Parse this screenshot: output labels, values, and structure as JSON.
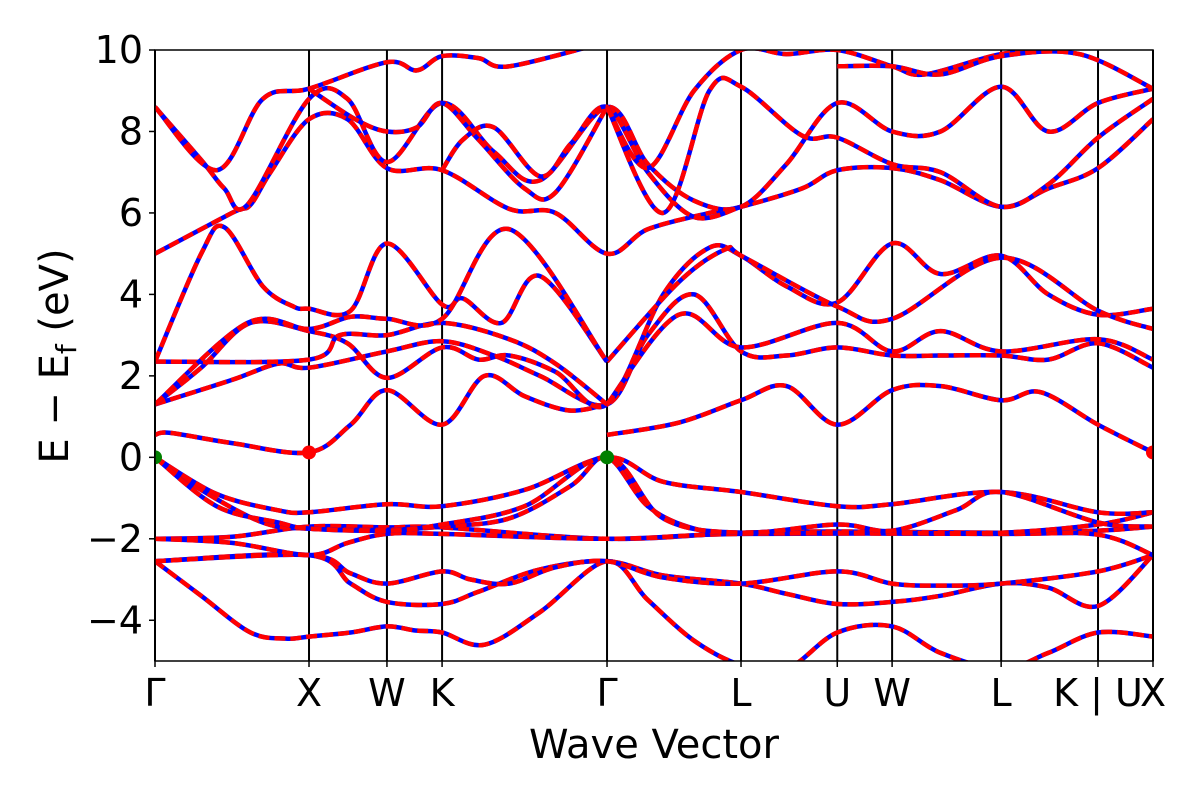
{
  "chart_data": {
    "type": "line",
    "title": "",
    "xlabel": "Wave Vector",
    "ylabel_main": "E − E",
    "ylabel_sub": "f",
    "ylabel_unit": " (eV)",
    "ylim": [
      -5,
      10
    ],
    "yticks": [
      -4,
      -2,
      0,
      2,
      4,
      6,
      8,
      10
    ],
    "ytick_labels": [
      "−4",
      "−2",
      "0",
      "2",
      "4",
      "6",
      "8",
      "10"
    ],
    "xlim": [
      0,
      6.48
    ],
    "kpoints": [
      {
        "label": "Γ",
        "k": 0
      },
      {
        "label": "X",
        "k": 1.0
      },
      {
        "label": "W",
        "k": 1.506
      },
      {
        "label": "K",
        "k": 1.864
      },
      {
        "label": "Γ",
        "k": 2.935
      },
      {
        "label": "L",
        "k": 3.805
      },
      {
        "label": "U",
        "k": 4.43
      },
      {
        "label": "W",
        "k": 4.786
      },
      {
        "label": "L",
        "k": 5.494
      },
      {
        "label": "K | U",
        "k": 6.123
      },
      {
        "label": "X",
        "k": 6.48
      }
    ],
    "colors": {
      "line_under": "#0000ff",
      "line_dash": "#ff0000",
      "vbm": "#008000",
      "cbm": "#ff0000"
    },
    "markers": [
      {
        "type": "vbm",
        "k": 0,
        "E": 0
      },
      {
        "type": "vbm",
        "k": 2.935,
        "E": 0
      },
      {
        "type": "cbm",
        "k": 1.0,
        "E": 0.12
      },
      {
        "type": "cbm",
        "k": 6.48,
        "E": 0.12
      }
    ],
    "bands": [
      [
        [
          0,
          -2.55
        ],
        [
          0.3,
          -3.4
        ],
        [
          0.62,
          -4.3
        ],
        [
          0.85,
          -4.45
        ],
        [
          1.0,
          -4.4
        ],
        [
          1.27,
          -4.3
        ],
        [
          1.506,
          -4.15
        ],
        [
          1.69,
          -4.25
        ],
        [
          1.864,
          -4.3
        ],
        [
          2.14,
          -4.6
        ],
        [
          2.5,
          -3.8
        ],
        [
          2.935,
          -2.55
        ],
        [
          3.2,
          -3.5
        ],
        [
          3.5,
          -4.5
        ],
        [
          3.805,
          -5.1
        ],
        [
          4.1,
          -5.2
        ],
        [
          4.43,
          -4.3
        ],
        [
          4.786,
          -4.15
        ],
        [
          5.1,
          -4.8
        ],
        [
          5.494,
          -5.2
        ],
        [
          5.8,
          -4.8
        ],
        [
          6.123,
          -4.3
        ],
        [
          6.48,
          -4.4
        ]
      ],
      [
        [
          0,
          -2.55
        ],
        [
          1.0,
          -2.4
        ],
        [
          1.27,
          -3.1
        ],
        [
          1.506,
          -3.55
        ],
        [
          1.864,
          -3.6
        ],
        [
          2.1,
          -3.3
        ],
        [
          2.5,
          -2.75
        ],
        [
          2.935,
          -2.55
        ],
        [
          3.3,
          -2.9
        ],
        [
          3.805,
          -3.1
        ],
        [
          4.1,
          -3.35
        ],
        [
          4.43,
          -3.6
        ],
        [
          4.786,
          -3.55
        ],
        [
          5.1,
          -3.4
        ],
        [
          5.494,
          -3.1
        ],
        [
          5.8,
          -3.2
        ],
        [
          6.123,
          -3.65
        ],
        [
          6.48,
          -2.4
        ]
      ],
      [
        [
          0,
          -2.55
        ],
        [
          1.0,
          -2.4
        ],
        [
          1.27,
          -2.85
        ],
        [
          1.506,
          -3.1
        ],
        [
          1.864,
          -2.8
        ],
        [
          2.05,
          -3.0
        ],
        [
          2.3,
          -3.1
        ],
        [
          2.6,
          -2.7
        ],
        [
          2.935,
          -2.55
        ],
        [
          3.3,
          -2.95
        ],
        [
          3.805,
          -3.1
        ],
        [
          4.43,
          -2.8
        ],
        [
          4.786,
          -3.1
        ],
        [
          5.1,
          -3.15
        ],
        [
          5.494,
          -3.1
        ],
        [
          6.123,
          -2.8
        ],
        [
          6.48,
          -2.4
        ]
      ],
      [
        [
          0,
          -2.0
        ],
        [
          0.5,
          -1.95
        ],
        [
          1.0,
          -1.7
        ],
        [
          1.506,
          -1.72
        ],
        [
          1.864,
          -1.72
        ],
        [
          2.935,
          -2.0
        ],
        [
          3.805,
          -1.85
        ],
        [
          4.43,
          -1.82
        ],
        [
          5.494,
          -1.85
        ],
        [
          6.123,
          -1.8
        ],
        [
          6.48,
          -1.7
        ]
      ],
      [
        [
          0,
          -2.0
        ],
        [
          0.5,
          -2.1
        ],
        [
          1.0,
          -2.4
        ],
        [
          1.25,
          -2.1
        ],
        [
          1.506,
          -1.88
        ],
        [
          1.864,
          -1.88
        ],
        [
          2.935,
          -2.0
        ],
        [
          3.805,
          -1.88
        ],
        [
          5.494,
          -1.88
        ],
        [
          6.123,
          -1.9
        ],
        [
          6.48,
          -2.4
        ]
      ],
      [
        [
          0,
          0
        ],
        [
          0.3,
          -0.8
        ],
        [
          0.7,
          -1.6
        ],
        [
          1.0,
          -1.75
        ],
        [
          1.506,
          -1.78
        ],
        [
          1.864,
          -1.7
        ],
        [
          2.3,
          -1.5
        ],
        [
          2.7,
          -0.7
        ],
        [
          2.935,
          0
        ],
        [
          3.2,
          -1.2
        ],
        [
          3.5,
          -1.75
        ],
        [
          3.805,
          -1.85
        ],
        [
          4.43,
          -1.85
        ],
        [
          4.786,
          -1.85
        ],
        [
          5.494,
          -1.85
        ],
        [
          6.123,
          -1.65
        ],
        [
          6.48,
          -1.35
        ]
      ],
      [
        [
          0,
          0
        ],
        [
          0.4,
          -0.9
        ],
        [
          0.8,
          -1.3
        ],
        [
          1.0,
          -1.35
        ],
        [
          1.506,
          -1.15
        ],
        [
          1.864,
          -1.2
        ],
        [
          2.4,
          -0.8
        ],
        [
          2.935,
          0
        ],
        [
          3.3,
          -0.6
        ],
        [
          3.805,
          -0.85
        ],
        [
          4.43,
          -1.2
        ],
        [
          4.786,
          -1.15
        ],
        [
          5.494,
          -0.85
        ],
        [
          6.123,
          -1.35
        ],
        [
          6.48,
          -1.35
        ]
      ],
      [
        [
          0,
          0
        ],
        [
          0.4,
          -1.2
        ],
        [
          0.8,
          -1.6
        ],
        [
          1.0,
          -1.75
        ],
        [
          1.506,
          -1.8
        ],
        [
          1.864,
          -1.65
        ],
        [
          2.4,
          -1.2
        ],
        [
          2.935,
          0
        ],
        [
          3.3,
          -1.5
        ],
        [
          3.805,
          -1.85
        ],
        [
          4.43,
          -1.65
        ],
        [
          4.786,
          -1.8
        ],
        [
          5.2,
          -1.3
        ],
        [
          5.494,
          -0.85
        ],
        [
          6.123,
          -1.6
        ],
        [
          6.48,
          -1.7
        ]
      ],
      [
        [
          0,
          0.55
        ],
        [
          0.1,
          0.6
        ],
        [
          0.5,
          0.35
        ],
        [
          1.0,
          0.12
        ],
        [
          1.27,
          0.8
        ],
        [
          1.506,
          1.65
        ],
        [
          1.864,
          0.8
        ],
        [
          2.14,
          2.0
        ],
        [
          2.4,
          1.5
        ],
        [
          2.69,
          1.15
        ],
        [
          2.935,
          1.3
        ]
      ],
      [
        [
          2.935,
          0.55
        ],
        [
          3.4,
          0.85
        ],
        [
          3.805,
          1.4
        ],
        [
          4.1,
          1.75
        ],
        [
          4.43,
          0.8
        ],
        [
          4.786,
          1.65
        ],
        [
          5.1,
          1.75
        ],
        [
          5.494,
          1.4
        ],
        [
          5.75,
          1.6
        ],
        [
          6.123,
          0.8
        ],
        [
          6.48,
          0.12
        ]
      ],
      [
        [
          0,
          1.3
        ],
        [
          0.5,
          1.9
        ],
        [
          0.8,
          2.3
        ],
        [
          1.0,
          2.2
        ],
        [
          1.506,
          2.6
        ],
        [
          1.864,
          2.85
        ],
        [
          2.2,
          2.5
        ],
        [
          2.5,
          2.0
        ],
        [
          2.935,
          1.3
        ],
        [
          3.2,
          3.0
        ],
        [
          3.5,
          4.0
        ],
        [
          3.805,
          2.6
        ],
        [
          4.1,
          2.5
        ],
        [
          4.43,
          2.7
        ],
        [
          4.786,
          2.5
        ],
        [
          5.1,
          2.5
        ],
        [
          5.494,
          2.5
        ],
        [
          5.8,
          2.4
        ],
        [
          6.123,
          2.8
        ],
        [
          6.48,
          2.2
        ]
      ],
      [
        [
          0,
          1.3
        ],
        [
          0.3,
          2.2
        ],
        [
          0.62,
          3.3
        ],
        [
          1.0,
          3.1
        ],
        [
          1.25,
          2.8
        ],
        [
          1.506,
          1.95
        ],
        [
          1.864,
          2.7
        ],
        [
          2.1,
          2.4
        ],
        [
          2.3,
          2.5
        ],
        [
          2.6,
          2.1
        ],
        [
          2.935,
          1.3
        ],
        [
          3.3,
          4.0
        ],
        [
          3.6,
          5.15
        ],
        [
          3.805,
          4.95
        ],
        [
          4.1,
          4.2
        ],
        [
          4.43,
          3.8
        ],
        [
          4.786,
          5.25
        ],
        [
          5.1,
          4.5
        ],
        [
          5.494,
          4.95
        ],
        [
          5.8,
          4.0
        ],
        [
          6.123,
          3.5
        ],
        [
          6.48,
          3.65
        ]
      ],
      [
        [
          0,
          2.35
        ],
        [
          1.0,
          2.4
        ],
        [
          1.2,
          3.0
        ],
        [
          1.506,
          3.0
        ],
        [
          1.864,
          3.3
        ],
        [
          2.3,
          2.9
        ],
        [
          2.6,
          2.3
        ],
        [
          2.935,
          1.3
        ]
      ],
      [
        [
          2.935,
          2.35
        ],
        [
          3.4,
          4.3
        ],
        [
          3.7,
          5.1
        ],
        [
          3.805,
          4.95
        ],
        [
          4.43,
          3.7
        ],
        [
          4.786,
          3.4
        ],
        [
          5.494,
          4.9
        ],
        [
          6.123,
          3.6
        ],
        [
          6.48,
          3.15
        ]
      ],
      [
        [
          0,
          2.35
        ],
        [
          0.3,
          5.0
        ],
        [
          0.45,
          5.65
        ],
        [
          0.7,
          4.2
        ],
        [
          0.9,
          3.7
        ],
        [
          1.0,
          3.65
        ],
        [
          1.27,
          3.6
        ],
        [
          1.506,
          5.25
        ],
        [
          1.864,
          3.75
        ],
        [
          2.0,
          3.9
        ],
        [
          2.25,
          3.3
        ],
        [
          2.5,
          4.45
        ],
        [
          2.935,
          2.35
        ]
      ],
      [
        [
          2.935,
          1.3
        ],
        [
          3.4,
          3.5
        ],
        [
          3.805,
          2.7
        ],
        [
          4.43,
          3.3
        ],
        [
          4.786,
          2.6
        ],
        [
          5.1,
          3.1
        ],
        [
          5.494,
          2.6
        ],
        [
          6.123,
          2.9
        ],
        [
          6.48,
          2.4
        ]
      ],
      [
        [
          0,
          1.3
        ],
        [
          0.6,
          3.3
        ],
        [
          1.0,
          3.15
        ],
        [
          1.27,
          3.45
        ],
        [
          1.506,
          3.4
        ],
        [
          1.864,
          3.4
        ],
        [
          2.3,
          5.6
        ],
        [
          2.935,
          2.35
        ]
      ],
      [
        [
          0,
          5.0
        ],
        [
          0.5,
          6.0
        ],
        [
          0.62,
          6.2
        ],
        [
          0.75,
          7.0
        ],
        [
          1.0,
          8.3
        ],
        [
          1.25,
          8.3
        ],
        [
          1.506,
          7.1
        ],
        [
          1.864,
          7.05
        ],
        [
          2.3,
          6.1
        ],
        [
          2.6,
          6.0
        ],
        [
          2.935,
          5.0
        ],
        [
          3.2,
          5.6
        ],
        [
          3.6,
          6.0
        ],
        [
          3.805,
          6.15
        ],
        [
          4.2,
          6.6
        ],
        [
          4.43,
          7.05
        ],
        [
          4.786,
          7.1
        ],
        [
          5.1,
          6.8
        ],
        [
          5.494,
          6.15
        ],
        [
          5.8,
          6.6
        ],
        [
          6.123,
          7.1
        ],
        [
          6.48,
          8.3
        ]
      ],
      [
        [
          0,
          8.6
        ],
        [
          0.3,
          7.3
        ],
        [
          0.45,
          6.6
        ],
        [
          0.6,
          6.2
        ],
        [
          1.0,
          8.8
        ],
        [
          1.25,
          8.8
        ],
        [
          1.506,
          7.25
        ],
        [
          1.864,
          8.7
        ],
        [
          2.2,
          7.5
        ],
        [
          2.5,
          6.8
        ],
        [
          2.935,
          8.6
        ],
        [
          3.2,
          7.2
        ],
        [
          3.5,
          6.3
        ],
        [
          3.805,
          6.15
        ],
        [
          4.1,
          7.2
        ],
        [
          4.43,
          8.7
        ],
        [
          4.786,
          8.0
        ],
        [
          5.1,
          8.0
        ],
        [
          5.494,
          9.1
        ],
        [
          5.8,
          8.0
        ],
        [
          6.123,
          8.7
        ],
        [
          6.48,
          9.05
        ]
      ],
      [
        [
          0,
          8.6
        ],
        [
          0.4,
          7.05
        ],
        [
          0.7,
          8.8
        ],
        [
          1.0,
          9.05
        ],
        [
          1.506,
          9.7
        ],
        [
          1.7,
          9.5
        ],
        [
          1.864,
          9.85
        ],
        [
          2.1,
          9.8
        ],
        [
          2.3,
          9.6
        ],
        [
          2.935,
          10.2
        ]
      ],
      [
        [
          1.0,
          9.05
        ],
        [
          1.3,
          8.3
        ],
        [
          1.506,
          8.0
        ],
        [
          1.7,
          8.1
        ],
        [
          1.864,
          8.7
        ],
        [
          2.1,
          7.8
        ],
        [
          2.4,
          6.6
        ],
        [
          2.6,
          6.5
        ],
        [
          2.935,
          8.6
        ]
      ],
      [
        [
          1.864,
          7.05
        ],
        [
          2.0,
          7.8
        ],
        [
          2.2,
          8.1
        ],
        [
          2.5,
          6.9
        ],
        [
          2.7,
          7.7
        ],
        [
          2.935,
          8.6
        ],
        [
          3.2,
          7.0
        ],
        [
          3.5,
          5.9
        ],
        [
          3.805,
          6.15
        ]
      ],
      [
        [
          2.935,
          8.6
        ],
        [
          3.2,
          7.1
        ],
        [
          3.5,
          9.0
        ],
        [
          3.805,
          10.0
        ],
        [
          4.1,
          9.9
        ],
        [
          4.43,
          10.0
        ],
        [
          4.786,
          9.6
        ],
        [
          5.0,
          9.4
        ],
        [
          5.494,
          9.9
        ],
        [
          6.0,
          10.1
        ]
      ],
      [
        [
          2.935,
          8.6
        ],
        [
          3.3,
          6.0
        ],
        [
          3.6,
          9.0
        ],
        [
          3.805,
          9.1
        ],
        [
          4.2,
          7.9
        ],
        [
          4.43,
          7.85
        ],
        [
          4.786,
          7.2
        ],
        [
          5.1,
          7.0
        ],
        [
          5.494,
          6.15
        ],
        [
          5.8,
          6.7
        ],
        [
          6.123,
          7.85
        ],
        [
          6.48,
          8.8
        ]
      ],
      [
        [
          4.43,
          9.6
        ],
        [
          4.786,
          9.6
        ],
        [
          5.1,
          9.4
        ],
        [
          5.494,
          9.85
        ],
        [
          6.0,
          9.9
        ],
        [
          6.48,
          9.05
        ]
      ]
    ]
  }
}
